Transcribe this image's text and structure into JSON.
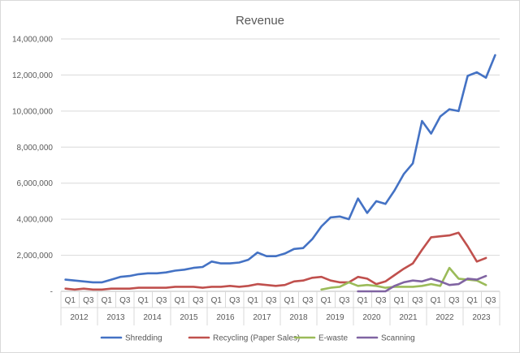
{
  "chart_data": {
    "type": "line",
    "title": "Revenue",
    "xlabel": "",
    "ylabel": "",
    "ylim": [
      0,
      14000000
    ],
    "yticks": [
      0,
      2000000,
      4000000,
      6000000,
      8000000,
      10000000,
      12000000,
      14000000
    ],
    "ytick_labels": [
      "-",
      "2,000,000",
      "4,000,000",
      "6,000,000",
      "8,000,000",
      "10,000,000",
      "12,000,000",
      "14,000,000"
    ],
    "grid": true,
    "legend_position": "bottom",
    "quarter_labels": [
      "Q1",
      "Q3",
      "Q1",
      "Q3",
      "Q1",
      "Q3",
      "Q1",
      "Q3",
      "Q1",
      "Q3",
      "Q1",
      "Q3",
      "Q1",
      "Q3",
      "Q1",
      "Q3",
      "Q1",
      "Q3",
      "Q1",
      "Q3",
      "Q1",
      "Q3",
      "Q1",
      "Q3"
    ],
    "years": [
      "2012",
      "2013",
      "2014",
      "2015",
      "2016",
      "2017",
      "2018",
      "2019",
      "2020",
      "2021",
      "2022",
      "2023"
    ],
    "series": [
      {
        "name": "Shredding",
        "color": "#4472c4",
        "values": [
          650000,
          600000,
          550000,
          500000,
          500000,
          650000,
          800000,
          850000,
          950000,
          1000000,
          1000000,
          1050000,
          1150000,
          1200000,
          1300000,
          1350000,
          1650000,
          1550000,
          1550000,
          1600000,
          1750000,
          2150000,
          1950000,
          1950000,
          2100000,
          2350000,
          2400000,
          2900000,
          3600000,
          4100000,
          4150000,
          4000000,
          5150000,
          4350000,
          5000000,
          4850000,
          5600000,
          6500000,
          7100000,
          9450000,
          8750000,
          9700000,
          10100000,
          10000000,
          11950000,
          12150000,
          11850000,
          13100000
        ]
      },
      {
        "name": "Recycling (Paper Sales)",
        "color": "#c0504d",
        "values": [
          150000,
          100000,
          150000,
          100000,
          100000,
          150000,
          150000,
          150000,
          200000,
          200000,
          200000,
          200000,
          250000,
          250000,
          250000,
          200000,
          250000,
          250000,
          300000,
          250000,
          300000,
          400000,
          350000,
          300000,
          350000,
          550000,
          600000,
          750000,
          800000,
          600000,
          500000,
          500000,
          800000,
          700000,
          400000,
          550000,
          900000,
          1250000,
          1550000,
          2300000,
          3000000,
          3050000,
          3100000,
          3250000,
          2500000,
          1650000,
          1850000
        ]
      },
      {
        "name": "E-waste",
        "color": "#9bbb59",
        "values": [
          null,
          null,
          null,
          null,
          null,
          null,
          null,
          null,
          null,
          null,
          null,
          null,
          null,
          null,
          null,
          null,
          null,
          null,
          null,
          null,
          null,
          null,
          null,
          null,
          null,
          null,
          null,
          null,
          100000,
          200000,
          250000,
          500000,
          300000,
          350000,
          300000,
          200000,
          250000,
          250000,
          250000,
          300000,
          400000,
          300000,
          1300000,
          700000,
          650000,
          600000,
          350000
        ]
      },
      {
        "name": "Scanning",
        "color": "#8064a2",
        "values": [
          null,
          null,
          null,
          null,
          null,
          null,
          null,
          null,
          null,
          null,
          null,
          null,
          null,
          null,
          null,
          null,
          null,
          null,
          null,
          null,
          null,
          null,
          null,
          null,
          null,
          null,
          null,
          null,
          null,
          null,
          null,
          null,
          0,
          0,
          0,
          0,
          300000,
          500000,
          600000,
          550000,
          700000,
          550000,
          350000,
          400000,
          700000,
          650000,
          850000
        ]
      }
    ]
  }
}
